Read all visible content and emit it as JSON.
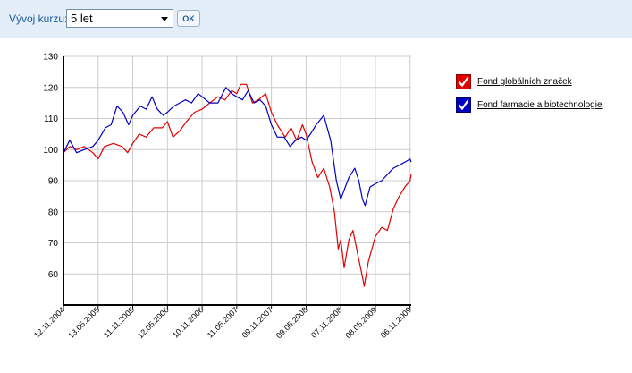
{
  "toolbar": {
    "label": "Vývoj kurzu:",
    "period_selected": "5 let",
    "ok_label": "OK"
  },
  "colors": {
    "series_red": "#e00000",
    "series_blue": "#0000c0",
    "grid": "#cccccc",
    "toolbar_bg": "#e4eef8"
  },
  "chart_data": {
    "type": "line",
    "title": "",
    "xlabel": "",
    "ylabel": "",
    "ylim": [
      50,
      130
    ],
    "xlim": [
      "2004-11-12",
      "2009-11-12"
    ],
    "y_ticks": [
      "130",
      "120",
      "110",
      "100",
      "90",
      "80",
      "70",
      "60"
    ],
    "x_ticks": [
      "12.11.2004",
      "13.05.2005",
      "11.11.2005",
      "12.05.2006",
      "10.11.2006",
      "11.05.2007",
      "09.11.2007",
      "09.05.2008",
      "07.11.2008",
      "08.05.2009",
      "06.11.2009"
    ],
    "grid": true,
    "legend_position": "right",
    "series": [
      {
        "name": "Fond globálních značek",
        "color": "#e00000",
        "points": [
          [
            "2004-11-12",
            99
          ],
          [
            "2004-12-15",
            101
          ],
          [
            "2005-01-20",
            100
          ],
          [
            "2005-03-01",
            101
          ],
          [
            "2005-04-15",
            99
          ],
          [
            "2005-05-13",
            97
          ],
          [
            "2005-06-15",
            101
          ],
          [
            "2005-08-01",
            102
          ],
          [
            "2005-09-15",
            101
          ],
          [
            "2005-10-15",
            99
          ],
          [
            "2005-11-11",
            102
          ],
          [
            "2005-12-15",
            105
          ],
          [
            "2006-01-20",
            104
          ],
          [
            "2006-03-01",
            107
          ],
          [
            "2006-04-15",
            107
          ],
          [
            "2006-05-12",
            109
          ],
          [
            "2006-06-10",
            104
          ],
          [
            "2006-07-15",
            106
          ],
          [
            "2006-08-20",
            109
          ],
          [
            "2006-10-01",
            112
          ],
          [
            "2006-11-10",
            113
          ],
          [
            "2006-12-20",
            115
          ],
          [
            "2007-02-01",
            117
          ],
          [
            "2007-03-10",
            116
          ],
          [
            "2007-04-15",
            119
          ],
          [
            "2007-05-11",
            118
          ],
          [
            "2007-06-01",
            121
          ],
          [
            "2007-07-01",
            121
          ],
          [
            "2007-08-01",
            115
          ],
          [
            "2007-09-01",
            116
          ],
          [
            "2007-10-10",
            118
          ],
          [
            "2007-11-09",
            112
          ],
          [
            "2007-12-10",
            108
          ],
          [
            "2008-01-20",
            104
          ],
          [
            "2008-02-20",
            107
          ],
          [
            "2008-03-20",
            103
          ],
          [
            "2008-04-20",
            108
          ],
          [
            "2008-05-09",
            105
          ],
          [
            "2008-06-10",
            96
          ],
          [
            "2008-07-10",
            91
          ],
          [
            "2008-08-10",
            94
          ],
          [
            "2008-09-10",
            88
          ],
          [
            "2008-10-05",
            80
          ],
          [
            "2008-10-25",
            68
          ],
          [
            "2008-11-07",
            71
          ],
          [
            "2008-11-25",
            62
          ],
          [
            "2008-12-20",
            71
          ],
          [
            "2009-01-10",
            74
          ],
          [
            "2009-02-05",
            66
          ],
          [
            "2009-03-01",
            59
          ],
          [
            "2009-03-10",
            56
          ],
          [
            "2009-04-01",
            64
          ],
          [
            "2009-05-08",
            72
          ],
          [
            "2009-06-10",
            75
          ],
          [
            "2009-07-10",
            74
          ],
          [
            "2009-08-10",
            81
          ],
          [
            "2009-09-10",
            85
          ],
          [
            "2009-10-10",
            88
          ],
          [
            "2009-11-06",
            90
          ],
          [
            "2009-11-12",
            92
          ]
        ]
      },
      {
        "name": "Fond farmacie a biotechnologie",
        "color": "#0000c0",
        "points": [
          [
            "2004-11-12",
            99
          ],
          [
            "2004-12-15",
            103
          ],
          [
            "2005-01-20",
            99
          ],
          [
            "2005-03-01",
            100
          ],
          [
            "2005-04-15",
            101
          ],
          [
            "2005-05-13",
            103
          ],
          [
            "2005-06-20",
            107
          ],
          [
            "2005-07-20",
            108
          ],
          [
            "2005-08-20",
            114
          ],
          [
            "2005-09-20",
            112
          ],
          [
            "2005-10-20",
            108
          ],
          [
            "2005-11-11",
            111
          ],
          [
            "2005-12-20",
            114
          ],
          [
            "2006-01-20",
            113
          ],
          [
            "2006-02-20",
            117
          ],
          [
            "2006-03-20",
            113
          ],
          [
            "2006-04-20",
            111
          ],
          [
            "2006-05-12",
            112
          ],
          [
            "2006-06-15",
            114
          ],
          [
            "2006-07-15",
            115
          ],
          [
            "2006-08-15",
            116
          ],
          [
            "2006-09-15",
            115
          ],
          [
            "2006-10-20",
            118
          ],
          [
            "2006-11-10",
            117
          ],
          [
            "2006-12-20",
            115
          ],
          [
            "2007-02-01",
            115
          ],
          [
            "2007-03-15",
            120
          ],
          [
            "2007-04-15",
            118
          ],
          [
            "2007-05-11",
            117
          ],
          [
            "2007-06-10",
            116
          ],
          [
            "2007-07-10",
            119
          ],
          [
            "2007-08-10",
            115
          ],
          [
            "2007-09-10",
            116
          ],
          [
            "2007-10-10",
            114
          ],
          [
            "2007-11-09",
            108
          ],
          [
            "2007-12-10",
            104
          ],
          [
            "2008-01-15",
            104
          ],
          [
            "2008-02-15",
            101
          ],
          [
            "2008-03-15",
            103
          ],
          [
            "2008-04-15",
            104
          ],
          [
            "2008-05-09",
            103
          ],
          [
            "2008-06-01",
            105
          ],
          [
            "2008-07-01",
            108
          ],
          [
            "2008-08-10",
            111
          ],
          [
            "2008-09-15",
            103
          ],
          [
            "2008-10-15",
            90
          ],
          [
            "2008-11-07",
            84
          ],
          [
            "2008-11-25",
            87
          ],
          [
            "2008-12-20",
            91
          ],
          [
            "2009-01-20",
            94
          ],
          [
            "2009-02-10",
            90
          ],
          [
            "2009-03-01",
            84
          ],
          [
            "2009-03-15",
            82
          ],
          [
            "2009-04-10",
            88
          ],
          [
            "2009-05-08",
            89
          ],
          [
            "2009-06-10",
            90
          ],
          [
            "2009-07-10",
            92
          ],
          [
            "2009-08-10",
            94
          ],
          [
            "2009-09-10",
            95
          ],
          [
            "2009-10-10",
            96
          ],
          [
            "2009-11-06",
            97
          ],
          [
            "2009-11-12",
            96
          ]
        ]
      }
    ]
  }
}
